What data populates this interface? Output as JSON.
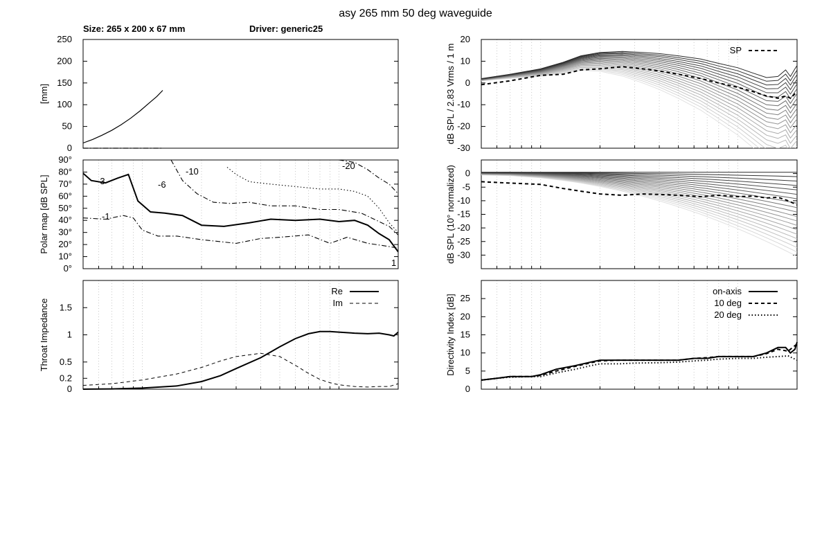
{
  "title": "asy 265 mm 50 deg waveguide",
  "size_label": "Size: 265 x 200 x 67 mm",
  "driver_label": "Driver: generic25",
  "chart_data": [
    {
      "id": "profile",
      "type": "line",
      "ylabel": "[mm]",
      "xlim": [
        0,
        265
      ],
      "ylim": [
        0,
        250
      ],
      "yticks": [
        0,
        50,
        100,
        150,
        200,
        250
      ],
      "series": [
        {
          "style": "solid",
          "x": [
            0,
            8,
            16,
            24,
            32,
            40,
            48,
            56,
            62,
            67
          ],
          "y": [
            12,
            20,
            30,
            41,
            54,
            69,
            86,
            105,
            119,
            133
          ]
        },
        {
          "style": "dashdot",
          "x": [
            0,
            67
          ],
          "y": [
            0,
            0
          ]
        }
      ]
    },
    {
      "id": "polar-map",
      "type": "line",
      "ylabel": "Polar map [dB SPL]",
      "xscale": "log",
      "xlim": [
        500,
        20000
      ],
      "ylim": [
        0,
        90
      ],
      "ytick_labels": [
        "0°",
        "10°",
        "20°",
        "30°",
        "40°",
        "50°",
        "60°",
        "70°",
        "80°",
        "90°"
      ],
      "yticks": [
        0,
        10,
        20,
        30,
        40,
        50,
        60,
        70,
        80,
        90
      ],
      "contour_labels": [
        "-3",
        "-6",
        "-10",
        "-20",
        "-1",
        "1"
      ],
      "series": [
        {
          "level": "-1",
          "style": "dashdot",
          "x": [
            500,
            650,
            800,
            900,
            1000,
            1200,
            1500,
            2000,
            3000,
            4000,
            5000,
            7000,
            9000,
            11000,
            14000,
            17000,
            20000
          ],
          "y": [
            42,
            41,
            44,
            42,
            32,
            27,
            27,
            24,
            21,
            25,
            26,
            28,
            21,
            26,
            21,
            19,
            17
          ]
        },
        {
          "level": "-3",
          "style": "solid",
          "x": [
            500,
            550,
            650,
            750,
            850,
            950,
            1100,
            1300,
            1600,
            2000,
            2600,
            3500,
            4500,
            6000,
            8000,
            10000,
            12000,
            14000,
            16000,
            18000,
            20000
          ],
          "y": [
            79,
            73,
            71,
            75,
            78,
            56,
            47,
            46,
            44,
            36,
            35,
            38,
            41,
            40,
            41,
            39,
            40,
            36,
            29,
            24,
            14
          ]
        },
        {
          "level": "-6",
          "style": "dashdot",
          "x": [
            1400,
            1600,
            1900,
            2300,
            2800,
            3500,
            4500,
            6000,
            8000,
            10000,
            13000,
            16000,
            18000,
            20000
          ],
          "y": [
            90,
            73,
            62,
            55,
            54,
            55,
            52,
            52,
            49,
            49,
            46,
            39,
            35,
            28
          ]
        },
        {
          "level": "-10",
          "style": "dotted",
          "x": [
            2700,
            3000,
            3500,
            4500,
            6000,
            8000,
            10000,
            12000,
            14000,
            16000,
            18000,
            20000
          ],
          "y": [
            84,
            78,
            72,
            70,
            68,
            66,
            66,
            64,
            60,
            50,
            38,
            30
          ]
        },
        {
          "level": "-20",
          "style": "dashdot",
          "x": [
            10000,
            12000,
            14000,
            16000,
            18000,
            20000
          ],
          "y": [
            90,
            88,
            82,
            75,
            70,
            62
          ]
        }
      ]
    },
    {
      "id": "throat-impedance",
      "type": "line",
      "ylabel": "Throat Impedance",
      "xscale": "log",
      "xlim": [
        500,
        20000
      ],
      "ylim": [
        0,
        2
      ],
      "yticks": [
        0,
        0.2,
        0.5,
        1,
        1.5
      ],
      "legend": "top-right",
      "series": [
        {
          "name": "Re",
          "style": "solid",
          "x": [
            500,
            700,
            1000,
            1500,
            2000,
            2500,
            3000,
            4000,
            5000,
            6000,
            7000,
            8000,
            9000,
            10000,
            12000,
            14000,
            16000,
            18000,
            19000,
            20000
          ],
          "y": [
            0,
            0.005,
            0.02,
            0.06,
            0.14,
            0.25,
            0.38,
            0.58,
            0.78,
            0.93,
            1.02,
            1.06,
            1.06,
            1.05,
            1.03,
            1.02,
            1.03,
            1.0,
            0.98,
            1.05
          ]
        },
        {
          "name": "Im",
          "style": "dashed",
          "x": [
            500,
            700,
            1000,
            1500,
            2000,
            2500,
            3000,
            4000,
            5000,
            6000,
            7000,
            8000,
            9000,
            10000,
            12000,
            14000,
            16000,
            18000,
            20000
          ],
          "y": [
            0.07,
            0.1,
            0.17,
            0.28,
            0.4,
            0.52,
            0.6,
            0.66,
            0.6,
            0.44,
            0.29,
            0.18,
            0.12,
            0.08,
            0.05,
            0.04,
            0.05,
            0.05,
            0.1
          ]
        }
      ]
    },
    {
      "id": "spl-response",
      "type": "line",
      "ylabel": "dB SPL / 2.83 Vrms / 1 m",
      "xscale": "log",
      "xlim": [
        500,
        20000
      ],
      "ylim": [
        -30,
        20
      ],
      "yticks": [
        -30,
        -20,
        -10,
        0,
        10,
        20
      ],
      "legend": "top-right",
      "series": [
        {
          "name": "SP",
          "style": "dashed",
          "x": [
            500,
            700,
            1000,
            1300,
            1600,
            2000,
            2600,
            3300,
            4000,
            5000,
            6500,
            8000,
            10000,
            12000,
            14000,
            16000,
            17500,
            18500,
            19500,
            20000
          ],
          "y": [
            -0.8,
            1,
            3.5,
            4,
            6,
            6.5,
            7.5,
            6.5,
            5.5,
            4,
            2,
            0,
            -2,
            -4,
            -6,
            -7,
            -6,
            -7,
            -5,
            -4.5
          ]
        },
        {
          "style": "solid",
          "x": [
            500,
            700,
            1000,
            1300,
            1600,
            2000,
            2600,
            3300,
            4000,
            5000,
            6500,
            8000,
            10000,
            12000,
            14000,
            16000,
            17500,
            18500,
            19500,
            20000
          ],
          "y": [
            2,
            4,
            6.5,
            9.5,
            12.5,
            14,
            14.5,
            14,
            13.5,
            12.5,
            11,
            9,
            7,
            4.5,
            2.5,
            3,
            6,
            3,
            6.5,
            8
          ]
        }
      ],
      "fan": {
        "curves": 20,
        "note": "off-axis family from on-axis (dark) to 90° (light)"
      }
    },
    {
      "id": "normalized-response",
      "type": "line",
      "ylabel": "dB SPL (10° normalized)",
      "xscale": "log",
      "xlim": [
        500,
        20000
      ],
      "ylim": [
        -35,
        5
      ],
      "yticks": [
        -30,
        -25,
        -20,
        -15,
        -10,
        -5,
        0
      ],
      "series": [
        {
          "style": "dashed",
          "x": [
            500,
            700,
            1000,
            1300,
            1600,
            2000,
            2600,
            3300,
            4000,
            5000,
            6500,
            8000,
            10000,
            12000,
            14000,
            16000,
            18000,
            20000
          ],
          "y": [
            -3,
            -3.5,
            -4,
            -5.5,
            -6.5,
            -7.5,
            -8,
            -7.5,
            -7.7,
            -8,
            -8.5,
            -8,
            -8.5,
            -8.3,
            -9,
            -8.7,
            -10,
            -11.5
          ]
        }
      ]
    },
    {
      "id": "directivity-index",
      "type": "line",
      "ylabel": "Directivity Index [dB]",
      "xscale": "log",
      "xlim": [
        500,
        20000
      ],
      "ylim": [
        0,
        30
      ],
      "yticks": [
        0,
        5,
        10,
        15,
        20,
        25
      ],
      "legend": "top-right",
      "series": [
        {
          "name": "on-axis",
          "style": "solid",
          "x": [
            500,
            600,
            700,
            900,
            1000,
            1200,
            1500,
            1800,
            2000,
            2500,
            3000,
            4000,
            5000,
            6000,
            7000,
            8000,
            10000,
            12000,
            14000,
            16000,
            17500,
            18500,
            19500,
            20000
          ],
          "y": [
            2.5,
            3,
            3.5,
            3.5,
            4,
            5.5,
            6.5,
            7.5,
            8,
            8,
            8,
            8,
            8,
            8.5,
            8.5,
            9,
            9,
            9,
            10,
            11.5,
            11.5,
            10,
            11,
            13
          ]
        },
        {
          "name": "10 deg",
          "style": "dashed",
          "x": [
            500,
            600,
            700,
            900,
            1000,
            1200,
            1500,
            1800,
            2000,
            2500,
            3000,
            4000,
            5000,
            6000,
            7000,
            8000,
            10000,
            12000,
            14000,
            16000,
            18000,
            20000
          ],
          "y": [
            2.5,
            3,
            3.5,
            3.5,
            3.8,
            5,
            6.3,
            7.3,
            7.8,
            8,
            8,
            8,
            8,
            8.5,
            8.7,
            9,
            9,
            9,
            9.8,
            11,
            10.5,
            12.5
          ]
        },
        {
          "name": "20 deg",
          "style": "dotted",
          "x": [
            500,
            600,
            700,
            900,
            1000,
            1200,
            1500,
            1800,
            2000,
            2500,
            3000,
            4000,
            5000,
            6000,
            7000,
            8000,
            10000,
            12000,
            14000,
            16000,
            18000,
            20000
          ],
          "y": [
            2.5,
            3,
            3.3,
            3.5,
            3.5,
            4.5,
            5.5,
            6.5,
            7,
            7,
            7.2,
            7.3,
            7.5,
            7.8,
            8,
            8.3,
            8.5,
            8.5,
            8.8,
            9,
            9.2,
            8
          ]
        }
      ]
    }
  ]
}
